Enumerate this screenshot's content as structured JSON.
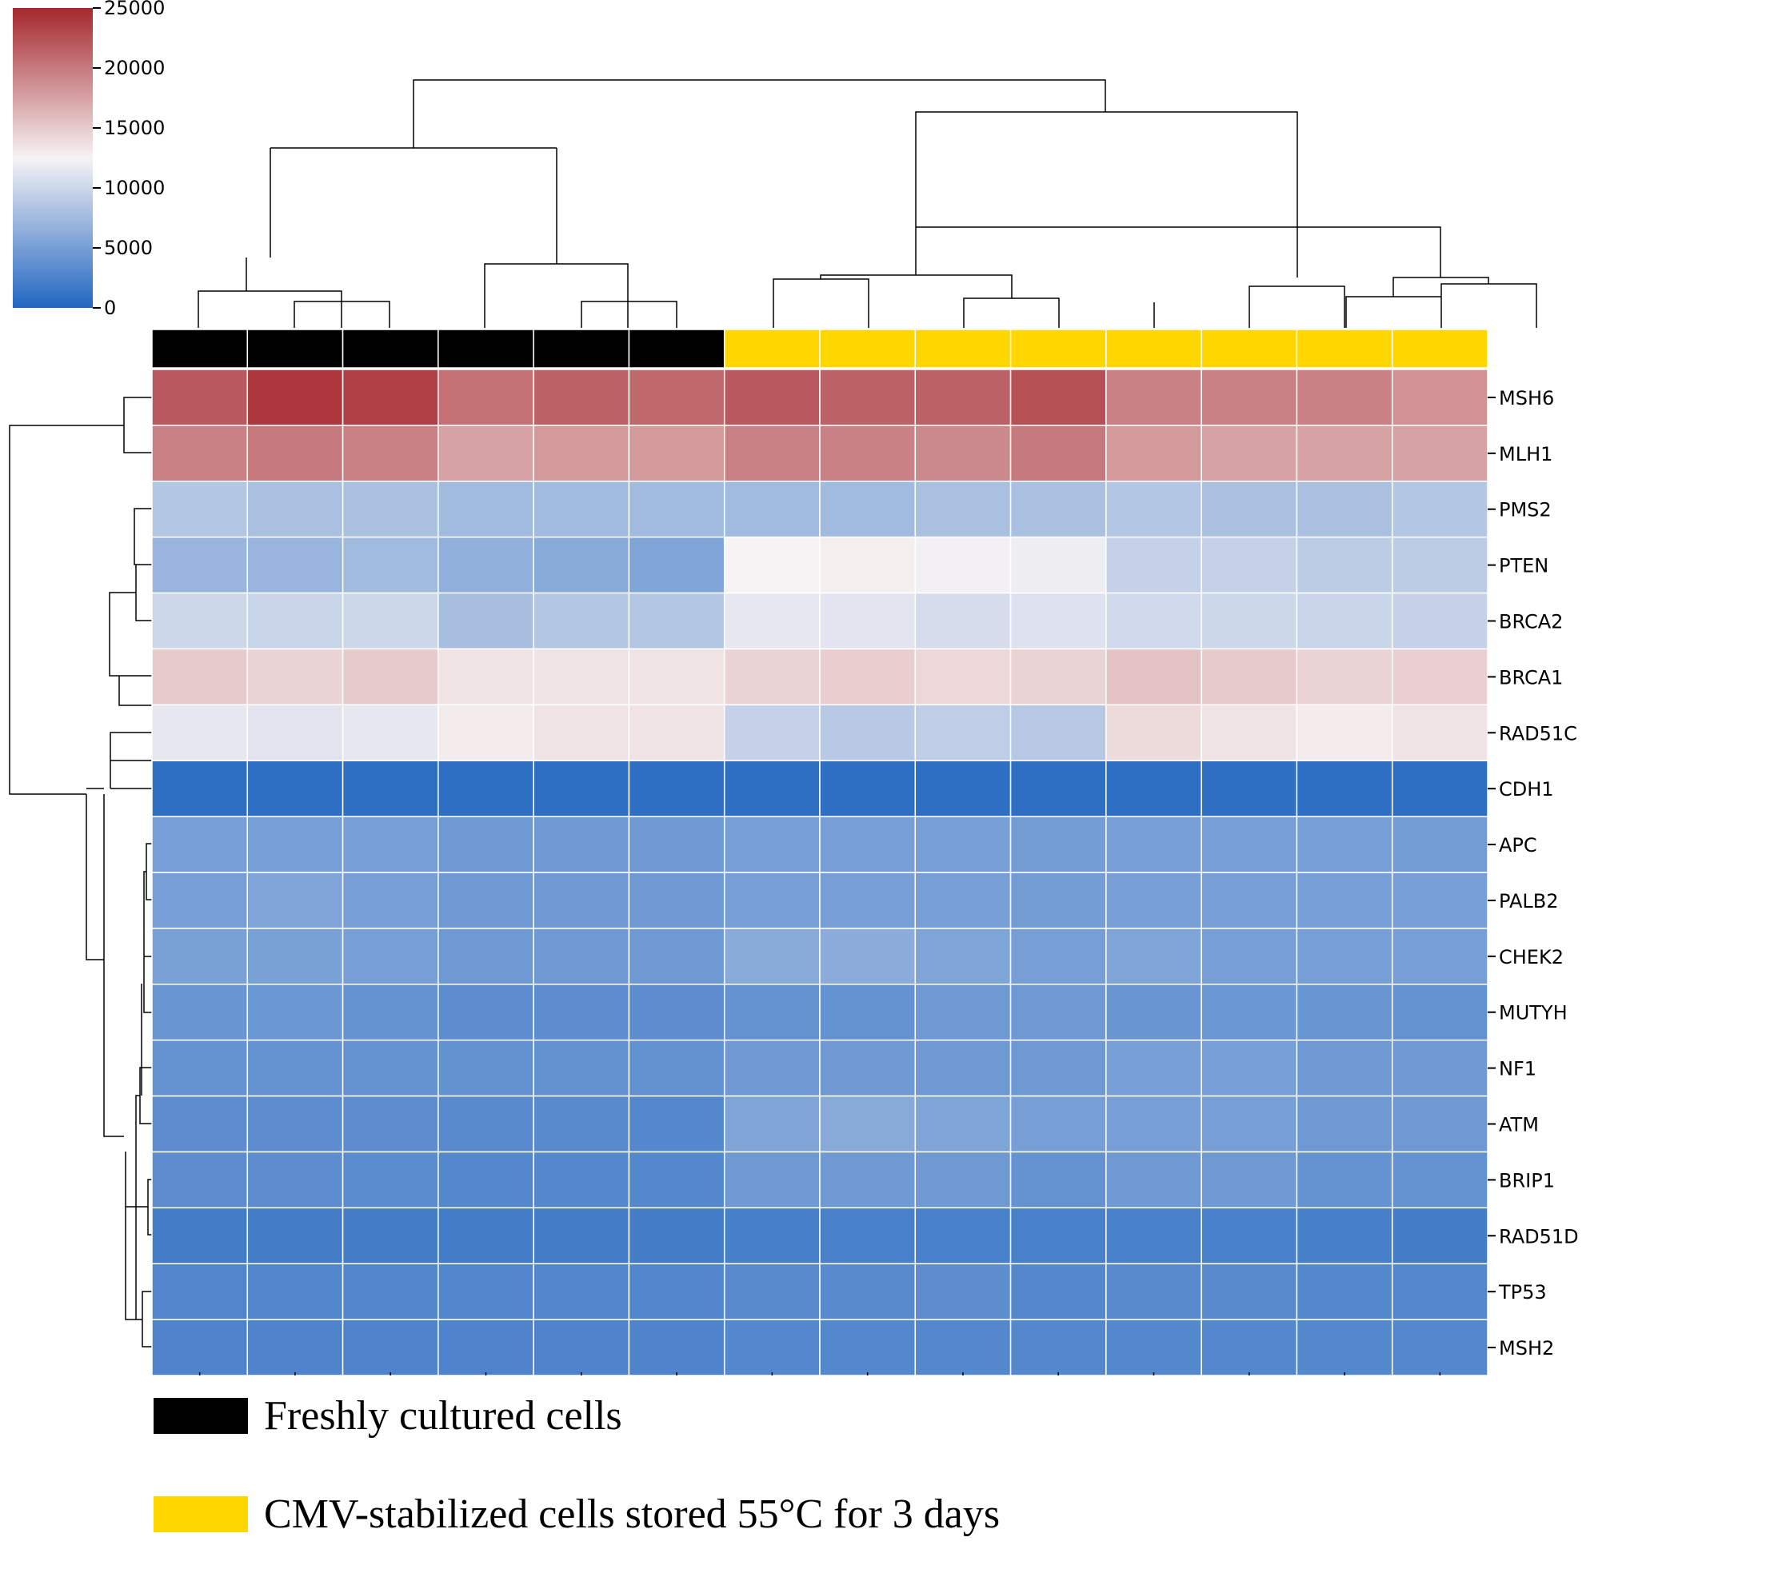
{
  "chart_data": {
    "type": "heatmap",
    "title": "",
    "colormap": {
      "low": "#2166c0",
      "mid": "#f7f3f4",
      "high": "#a5282d"
    },
    "colorbar": {
      "min": 0,
      "max": 25000,
      "ticks": [
        "25000",
        "20000",
        "15000",
        "10000",
        "5000",
        "0"
      ]
    },
    "groups": [
      {
        "name": "Freshly cultured cells",
        "color": "#000000"
      },
      {
        "name": "CMV-stabilized cells stored 55°C for 3 days",
        "color": "#ffd700"
      }
    ],
    "column_groups": [
      0,
      0,
      0,
      0,
      0,
      0,
      1,
      1,
      1,
      1,
      1,
      1,
      1,
      1
    ],
    "genes": [
      "MSH6",
      "MLH1",
      "PMS2",
      "PTEN",
      "BRCA2",
      "BRCA1",
      "RAD51C",
      "CDH1",
      "APC",
      "PALB2",
      "CHEK2",
      "MUTYH",
      "NF1",
      "ATM",
      "BRIP1",
      "RAD51D",
      "TP53",
      "MSH2"
    ],
    "values": [
      [
        22000,
        24000,
        23500,
        20500,
        21500,
        21000,
        22000,
        21500,
        21500,
        22500,
        19500,
        19500,
        19500,
        18500
      ],
      [
        19500,
        20000,
        19500,
        17500,
        18000,
        18000,
        19500,
        19500,
        19000,
        20000,
        18000,
        17500,
        17500,
        17500
      ],
      [
        8500,
        8000,
        8000,
        7500,
        7500,
        7500,
        7500,
        7500,
        8000,
        8000,
        8500,
        8000,
        8000,
        8500
      ],
      [
        7000,
        7000,
        7500,
        6500,
        6000,
        5500,
        12500,
        12800,
        12200,
        12000,
        9500,
        9500,
        9000,
        9000
      ],
      [
        10000,
        9800,
        10000,
        7800,
        8500,
        8500,
        11500,
        11300,
        10500,
        11000,
        10200,
        10000,
        9800,
        9500
      ],
      [
        15000,
        14500,
        15000,
        13500,
        13500,
        13500,
        14500,
        14800,
        14200,
        14500,
        15500,
        15000,
        14500,
        14700
      ],
      [
        11500,
        11200,
        11500,
        13000,
        13500,
        13500,
        9500,
        8800,
        9200,
        8700,
        14000,
        13500,
        13000,
        13500
      ],
      [
        800,
        800,
        800,
        800,
        800,
        800,
        800,
        800,
        800,
        800,
        800,
        800,
        800,
        800
      ],
      [
        5000,
        5000,
        5000,
        4500,
        4500,
        4500,
        5000,
        5000,
        5000,
        4800,
        5000,
        5000,
        5000,
        4800
      ],
      [
        5000,
        5500,
        5000,
        4500,
        4500,
        4500,
        5000,
        5000,
        5000,
        4800,
        5000,
        5000,
        5000,
        5000
      ],
      [
        5200,
        5200,
        5000,
        4500,
        4500,
        4500,
        6000,
        6200,
        5500,
        5000,
        5500,
        5000,
        5000,
        5000
      ],
      [
        4200,
        4300,
        4000,
        3500,
        3500,
        3500,
        4000,
        4000,
        4500,
        4500,
        4200,
        4300,
        4200,
        4000
      ],
      [
        4000,
        4000,
        4000,
        3800,
        3800,
        3800,
        4500,
        4500,
        4500,
        4500,
        5000,
        5000,
        4500,
        4500
      ],
      [
        3500,
        3500,
        3500,
        3200,
        3200,
        3000,
        5500,
        6000,
        5500,
        5000,
        5000,
        5000,
        4500,
        4500
      ],
      [
        3500,
        3500,
        3300,
        3000,
        3000,
        3000,
        4500,
        4500,
        4500,
        4000,
        4500,
        4500,
        4000,
        4000
      ],
      [
        2000,
        2000,
        2000,
        2000,
        2000,
        2000,
        2200,
        2300,
        2300,
        2300,
        2300,
        2300,
        2200,
        2000
      ],
      [
        2800,
        2800,
        2800,
        2800,
        2800,
        2800,
        3200,
        3200,
        3500,
        3000,
        3200,
        3200,
        3000,
        3000
      ],
      [
        2600,
        2600,
        2600,
        2600,
        2600,
        2600,
        3000,
        3000,
        3000,
        3000,
        3000,
        3000,
        3000,
        3000
      ]
    ]
  }
}
